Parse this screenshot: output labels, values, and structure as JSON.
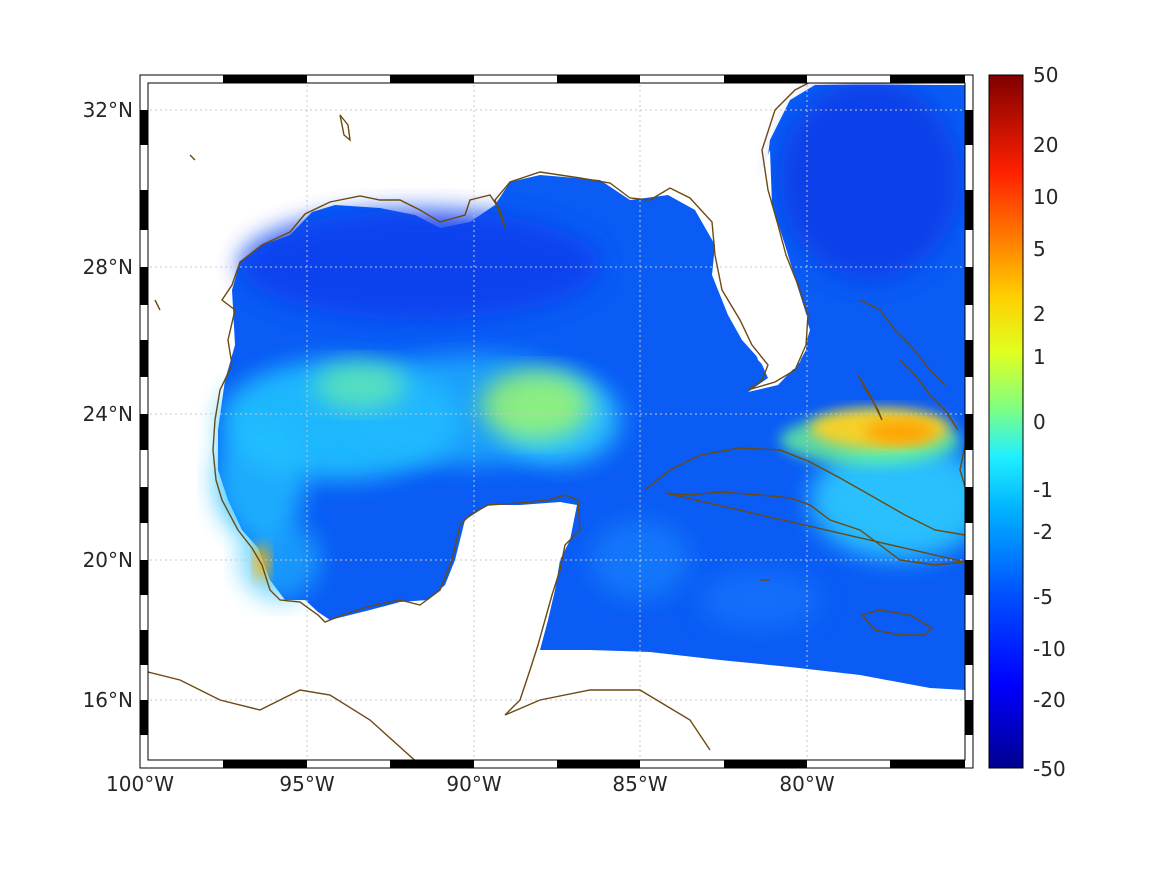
{
  "map": {
    "lat_labels": [
      "32°N",
      "28°N",
      "24°N",
      "20°N",
      "16°N"
    ],
    "lon_labels": [
      "100°W",
      "95°W",
      "90°W",
      "85°W",
      "80°W"
    ],
    "lon_range": [
      -100,
      -75.1
    ],
    "lat_range": [
      14.2,
      33
    ],
    "grid": "dotted",
    "frame": "black-white dashed border",
    "coastline_color": "#6b4a12",
    "colormap": "jet"
  },
  "colorbar": {
    "ticks": [
      "50",
      "20",
      "10",
      "5",
      "2",
      "1",
      "0",
      "-1",
      "-2",
      "-5",
      "-10",
      "-20",
      "-50"
    ],
    "range": [
      -50,
      50
    ],
    "scale": "nonlinear"
  }
}
